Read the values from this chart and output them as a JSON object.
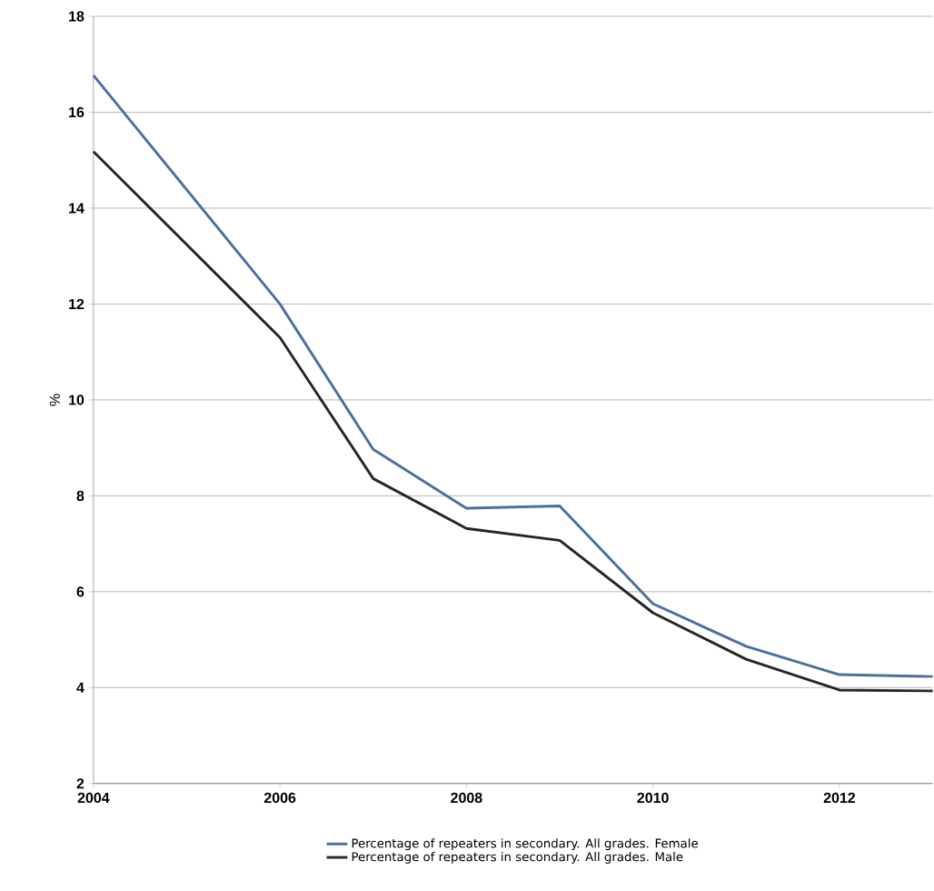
{
  "chart_data": {
    "type": "line",
    "ylabel": "%",
    "x": [
      2004,
      2006,
      2007,
      2008,
      2009,
      2010,
      2011,
      2012,
      2013
    ],
    "series": [
      {
        "name": "Percentage of repeaters in secondary. All grades. Female",
        "color": "#4a6fa0",
        "values": [
          16.77,
          12.0,
          8.97,
          7.74,
          7.79,
          5.75,
          4.86,
          4.27,
          4.23
        ]
      },
      {
        "name": "Percentage of repeaters in secondary. All grades. Male",
        "color": "#262626",
        "values": [
          15.18,
          11.3,
          8.36,
          7.32,
          7.07,
          5.56,
          4.59,
          3.95,
          3.93
        ]
      }
    ],
    "xlim": [
      2004,
      2013
    ],
    "xticks": [
      2004,
      2006,
      2008,
      2010,
      2012
    ],
    "ylim": [
      2,
      18
    ],
    "yticks": [
      2,
      4,
      6,
      8,
      10,
      12,
      14,
      16,
      18
    ],
    "grid": "y",
    "legend": "bottom",
    "marker": "none",
    "line_style": "solid"
  }
}
